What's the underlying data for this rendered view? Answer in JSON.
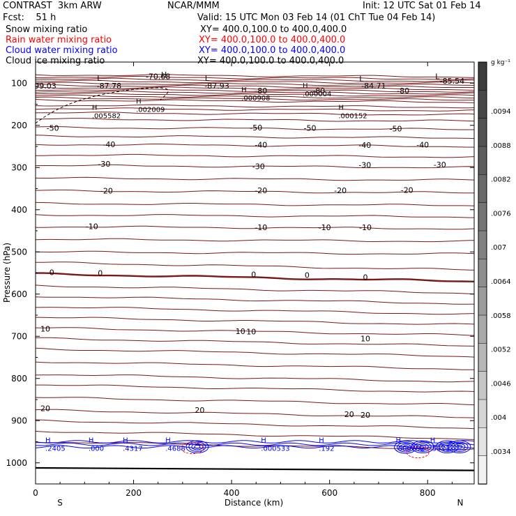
{
  "header": {
    "model": "CONTRAST  3km ARW",
    "org": "NCAR/MMM",
    "init": "Init: 12 UTC Sat 01 Feb 14",
    "fcst": "Fcst:    51 h",
    "valid": "Valid: 15 UTC Mon 03 Feb 14 (01 ChT Tue 04 Feb 14)",
    "fields": [
      {
        "name": "Snow mixing ratio",
        "xy": "XY= 400.0,100.0 to 400.0,400.0",
        "color": "#000000"
      },
      {
        "name": "Rain water mixing ratio",
        "xy": "XY= 400.0,100.0 to 400.0,400.0",
        "color": "#ff0000"
      },
      {
        "name": "Cloud water mixing ratio",
        "xy": "XY= 400.0,100.0 to 400.0,400.0",
        "color": "#0000ff"
      },
      {
        "name": "Cloud ice mixing ratio",
        "xy": "XY= 400.0,100.0 to 400.0,400.0",
        "color": "#000000"
      }
    ]
  },
  "chart_data": {
    "type": "line",
    "ylabel": "Pressure (hPa)",
    "xlabel": "Distance (km)",
    "xlim": [
      0,
      895
    ],
    "ylim": [
      1050,
      50
    ],
    "xticks": [
      "0",
      "200",
      "400",
      "600",
      "800"
    ],
    "yticks": [
      "100",
      "200",
      "300",
      "400",
      "500",
      "600",
      "700",
      "800",
      "900",
      "1000"
    ],
    "x_end_labels": {
      "left": "S",
      "right": "N"
    },
    "colorbar": {
      "unit": "g kg⁻¹",
      "labels": [
        ".0094",
        ".0088",
        ".0082",
        ".0076",
        ".007",
        ".0064",
        ".0058",
        ".0052",
        ".0046",
        ".004",
        ".0034"
      ],
      "colors": [
        "#3c3c3c",
        "#474747",
        "#525252",
        "#5d5d5d",
        "#696969",
        "#757575",
        "#818181",
        "#8e8e8e",
        "#9b9b9b",
        "#a9a9a9",
        "#b7b7b7",
        "#c6c6c6",
        "#d5d5d5",
        "#e4e4e4",
        "#f2f2f2"
      ]
    },
    "temperature_contours_color": "#7a1818",
    "temperature_labels": [
      {
        "t": "-70.68",
        "x": 250,
        "p": 84
      },
      {
        "t": "-87.78",
        "x": 150,
        "p": 106
      },
      {
        "t": "-87.93",
        "x": 370,
        "p": 106
      },
      {
        "t": "-84.71",
        "x": 690,
        "p": 106
      },
      {
        "t": "-85.54",
        "x": 850,
        "p": 95
      },
      {
        "t": "99.03",
        "x": 20,
        "p": 106
      },
      {
        "t": "-80",
        "x": 460,
        "p": 118
      },
      {
        "t": "-80",
        "x": 750,
        "p": 118
      },
      {
        "t": "-80",
        "x": 578,
        "p": 118
      },
      {
        "t": "-50",
        "x": 35,
        "p": 206
      },
      {
        "t": "-50",
        "x": 450,
        "p": 205
      },
      {
        "t": "-50",
        "x": 560,
        "p": 206
      },
      {
        "t": "-50",
        "x": 735,
        "p": 208
      },
      {
        "t": "-40",
        "x": 150,
        "p": 245
      },
      {
        "t": "-40",
        "x": 460,
        "p": 246
      },
      {
        "t": "-40",
        "x": 672,
        "p": 247
      },
      {
        "t": "-40",
        "x": 790,
        "p": 246
      },
      {
        "t": "-30",
        "x": 140,
        "p": 291
      },
      {
        "t": "-30",
        "x": 455,
        "p": 297
      },
      {
        "t": "-30",
        "x": 672,
        "p": 294
      },
      {
        "t": "-30",
        "x": 825,
        "p": 293
      },
      {
        "t": "-20",
        "x": 145,
        "p": 355
      },
      {
        "t": "-20",
        "x": 460,
        "p": 354
      },
      {
        "t": "-20",
        "x": 622,
        "p": 354
      },
      {
        "t": "-20",
        "x": 758,
        "p": 353
      },
      {
        "t": "-10",
        "x": 115,
        "p": 439
      },
      {
        "t": "-10",
        "x": 460,
        "p": 442
      },
      {
        "t": "-10",
        "x": 590,
        "p": 442
      },
      {
        "t": "-10",
        "x": 673,
        "p": 442
      },
      {
        "t": "0",
        "x": 33,
        "p": 548
      },
      {
        "t": "0",
        "x": 132,
        "p": 550
      },
      {
        "t": "0",
        "x": 445,
        "p": 553
      },
      {
        "t": "0",
        "x": 554,
        "p": 555
      },
      {
        "t": "0",
        "x": 673,
        "p": 560
      },
      {
        "t": "10",
        "x": 20,
        "p": 682
      },
      {
        "t": "10",
        "x": 418,
        "p": 688
      },
      {
        "t": "10",
        "x": 440,
        "p": 689
      },
      {
        "t": "10",
        "x": 673,
        "p": 705
      },
      {
        "t": "20",
        "x": 20,
        "p": 871
      },
      {
        "t": "20",
        "x": 335,
        "p": 875
      },
      {
        "t": "20",
        "x": 640,
        "p": 885
      },
      {
        "t": "20",
        "x": 673,
        "p": 886
      }
    ],
    "extrema": [
      {
        "m": "H",
        "v": ".002009",
        "x": 205,
        "p": 155
      },
      {
        "m": "H",
        "v": ".005582",
        "x": 115,
        "p": 170
      },
      {
        "m": "H",
        "v": ".000908",
        "x": 420,
        "p": 128
      },
      {
        "m": "H",
        "v": ".000004",
        "x": 545,
        "p": 118
      },
      {
        "m": "H",
        "v": ".000152",
        "x": 618,
        "p": 170
      },
      {
        "m": "H",
        "v": ".2405",
        "x": 20,
        "p": 958
      },
      {
        "m": "H",
        "v": ".000",
        "x": 108,
        "p": 958
      },
      {
        "m": "H",
        "v": ".4317",
        "x": 178,
        "p": 958
      },
      {
        "m": "H",
        "v": ".4688",
        "x": 265,
        "p": 958
      },
      {
        "m": "H",
        "v": ".000533",
        "x": 460,
        "p": 958
      },
      {
        "m": "H",
        "v": ".192",
        "x": 578,
        "p": 958
      },
      {
        "m": "H",
        "v": ".000732",
        "x": 735,
        "p": 958
      },
      {
        "m": "H",
        "v": ".5911",
        "x": 805,
        "p": 958
      }
    ],
    "lows": [
      {
        "m": "L",
        "x": 130,
        "p": 88
      },
      {
        "m": "L",
        "x": 350,
        "p": 88
      },
      {
        "m": "L",
        "x": 665,
        "p": 90
      },
      {
        "m": "L",
        "x": 820,
        "p": 84
      }
    ],
    "high_top": [
      {
        "m": "H",
        "x": 262,
        "p": 80
      }
    ]
  }
}
